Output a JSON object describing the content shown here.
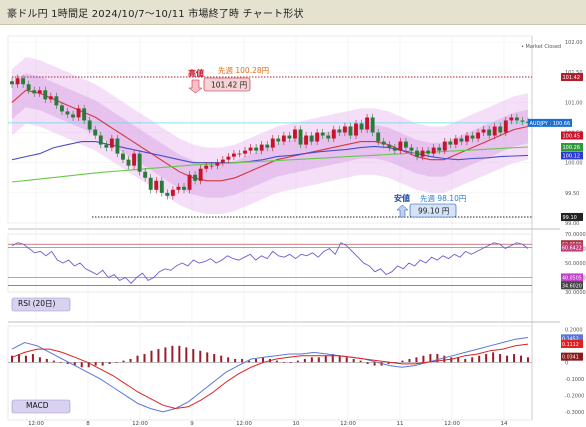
{
  "header": {
    "title": "豪ドル円 1時間足 2024/10/7〜10/11 市場終了時 チャート形状"
  },
  "status": "• Market Closed",
  "colors": {
    "up": "#c8142a",
    "down": "#2c7a3a",
    "sma_short": "#d4373f",
    "sma_mid": "#4a4ec8",
    "sma_long": "#66c84a",
    "bb_band": "#e7b6ef",
    "rsi": "#6a5fd0",
    "macd": "#5a78d8",
    "signal": "#dd2020",
    "current": "#6ad7e6"
  },
  "annotations": {
    "high_label": "高値",
    "high_price": "101.42 円",
    "prev_week_high": "先週 100.28円",
    "low_label": "安値",
    "low_price": "99.10 円",
    "prev_week_low": "先週 98.10円"
  },
  "chart_data": [
    {
      "type": "candlestick",
      "panel": "price",
      "ylim": [
        99.0,
        102.1
      ],
      "y_ticks": [
        "102.00",
        "101.50",
        "101.00",
        "100.50",
        "100.00",
        "99.50",
        "99.00"
      ],
      "x_ticks": [
        "12:00",
        "8",
        "12:00",
        "9",
        "12:00",
        "10",
        "12:00",
        "11",
        "12:00",
        "14"
      ],
      "price_tags": [
        {
          "label": "101.42",
          "value": 101.42,
          "color": "#b01e2e"
        },
        {
          "label": "AUDJPY : 100.66",
          "value": 100.66,
          "color": "#1a6fd1"
        },
        {
          "label": "100.45",
          "value": 100.45,
          "color": "#c8142a"
        },
        {
          "label": "100.26",
          "value": 100.26,
          "color": "#2c9a3a"
        },
        {
          "label": "100.12",
          "value": 100.12,
          "color": "#2c3ad0"
        },
        {
          "label": "99.10",
          "value": 99.1,
          "color": "#222222"
        }
      ],
      "high_line": 101.42,
      "low_line": 99.1,
      "current": 100.66,
      "candles_close": [
        101.3,
        101.4,
        101.3,
        101.2,
        101.15,
        101.2,
        101.05,
        101.1,
        100.95,
        100.85,
        100.8,
        100.75,
        100.9,
        100.7,
        100.55,
        100.45,
        100.3,
        100.25,
        100.4,
        100.15,
        100.05,
        99.95,
        100.15,
        99.85,
        99.75,
        99.55,
        99.7,
        99.5,
        99.45,
        99.55,
        99.6,
        99.55,
        99.8,
        99.7,
        99.9,
        99.95,
        99.95,
        100.0,
        100.05,
        100.1,
        100.15,
        100.15,
        100.2,
        100.25,
        100.2,
        100.3,
        100.25,
        100.4,
        100.35,
        100.45,
        100.4,
        100.55,
        100.3,
        100.45,
        100.35,
        100.5,
        100.45,
        100.4,
        100.55,
        100.5,
        100.6,
        100.45,
        100.65,
        100.55,
        100.75,
        100.5,
        100.35,
        100.3,
        100.25,
        100.2,
        100.35,
        100.25,
        100.2,
        100.1,
        100.2,
        100.15,
        100.25,
        100.2,
        100.35,
        100.3,
        100.4,
        100.35,
        100.45,
        100.4,
        100.5,
        100.55,
        100.45,
        100.6,
        100.5,
        100.7,
        100.75,
        100.7,
        100.68,
        100.66
      ],
      "series": [
        {
          "name": "",
          "values": [
            101.0,
            101.2,
            101.15,
            101.05,
            100.95,
            100.85,
            100.75,
            100.6,
            100.45,
            100.3,
            100.15,
            100.0,
            99.85,
            99.75,
            99.7,
            99.7,
            99.75,
            99.85,
            99.95,
            100.05,
            100.1,
            100.15,
            100.2,
            100.25,
            100.3,
            100.35,
            100.35,
            100.3,
            100.2,
            100.1,
            100.05,
            100.05,
            100.15,
            100.25,
            100.35,
            100.45,
            100.55,
            100.6
          ]
        },
        {
          "name": "",
          "values": [
            100.05,
            100.1,
            100.15,
            100.25,
            100.3,
            100.35,
            100.35,
            100.3,
            100.25,
            100.2,
            100.15,
            100.1,
            100.05,
            100.0,
            100.0,
            100.0,
            100.0,
            100.02,
            100.05,
            100.1,
            100.12,
            100.15,
            100.18,
            100.2,
            100.22,
            100.25,
            100.27,
            100.25,
            100.2,
            100.15,
            100.1,
            100.07,
            100.05,
            100.07,
            100.08,
            100.1,
            100.11,
            100.12
          ]
        },
        {
          "name": "",
          "values": [
            99.68,
            99.72,
            99.76,
            99.8,
            99.84,
            99.87,
            99.9,
            99.93,
            99.96,
            99.98,
            100.0,
            100.02,
            100.04,
            100.06,
            100.08,
            100.1,
            100.12,
            100.14,
            100.16,
            100.18,
            100.2,
            100.22,
            100.24,
            100.26
          ]
        }
      ]
    },
    {
      "type": "line",
      "panel": "rsi",
      "label": "RSI (20日)",
      "ylim": [
        30,
        70
      ],
      "y_ticks": [
        "70.0000",
        "60.0000",
        "50.0000",
        "40.0000",
        "30.0000"
      ],
      "levels": [
        {
          "label": "62.9580",
          "value": 62.958,
          "color": "#a8323e"
        },
        {
          "label": "60.6422",
          "value": 60.6422,
          "color": "#c0407a"
        },
        {
          "label": "40.0505",
          "value": 40.0505,
          "color": "#c040c8"
        },
        {
          "label": "34.6020",
          "value": 34.602,
          "color": "#444444"
        }
      ],
      "series": [
        {
          "name": "",
          "values": [
            62,
            64,
            63,
            60,
            57,
            58,
            55,
            58,
            52,
            50,
            52,
            48,
            50,
            46,
            44,
            42,
            45,
            40,
            42,
            38,
            40,
            36,
            40,
            43,
            38,
            40,
            44,
            46,
            45,
            48,
            50,
            48,
            52,
            50,
            51,
            53,
            50,
            52,
            55,
            53,
            52,
            54,
            56,
            52,
            55,
            53,
            58,
            55,
            54,
            56,
            53,
            56,
            55,
            57,
            54,
            58,
            60,
            56,
            64,
            62,
            58,
            54,
            50,
            48,
            44,
            46,
            42,
            44,
            48,
            46,
            50,
            48,
            52,
            50,
            54,
            52,
            55,
            53,
            56,
            54,
            58,
            56,
            58,
            60,
            62,
            64,
            63,
            60,
            62,
            64,
            63,
            60
          ]
        }
      ]
    },
    {
      "type": "bar",
      "panel": "macd",
      "label": "MACD",
      "ylim": [
        -0.35,
        0.22
      ],
      "y_ticks": [
        "0.2000",
        "0.1000",
        "0",
        "-0.1000",
        "-0.2000",
        "-0.3000"
      ],
      "levels": [
        {
          "label": "0.1452",
          "value": 0.1452,
          "color": "#5a78d8"
        },
        {
          "label": "0.1112",
          "value": 0.1112,
          "color": "#dd2020"
        },
        {
          "label": "0.0341",
          "value": 0.0341,
          "color": "#8a1a1a"
        }
      ],
      "values": [
        0.04,
        0.05,
        0.04,
        0.05,
        0.03,
        0.02,
        0.01,
        0.0,
        -0.01,
        -0.02,
        -0.03,
        -0.03,
        -0.02,
        -0.02,
        -0.01,
        0.0,
        0.01,
        0.02,
        0.04,
        0.05,
        0.07,
        0.08,
        0.09,
        0.1,
        0.1,
        0.09,
        0.08,
        0.07,
        0.06,
        0.05,
        0.04,
        0.03,
        0.02,
        0.02,
        0.01,
        0.02,
        0.03,
        0.02,
        0.01,
        0.0,
        0.0,
        0.01,
        0.02,
        0.03,
        0.03,
        0.04,
        0.05,
        0.04,
        0.03,
        0.02,
        0.01,
        -0.01,
        -0.02,
        -0.02,
        -0.01,
        0.0,
        0.01,
        0.02,
        0.03,
        0.04,
        0.05,
        0.05,
        0.04,
        0.03,
        0.03,
        0.02,
        0.03,
        0.04,
        0.05,
        0.06,
        0.05,
        0.04,
        0.05,
        0.04,
        0.03
      ],
      "series": [
        {
          "name": "",
          "values": [
            0.08,
            0.12,
            0.1,
            0.06,
            0.02,
            -0.02,
            -0.06,
            -0.1,
            -0.15,
            -0.2,
            -0.25,
            -0.28,
            -0.3,
            -0.28,
            -0.24,
            -0.18,
            -0.12,
            -0.06,
            -0.02,
            0.02,
            0.03,
            0.04,
            0.05,
            0.05,
            0.06,
            0.05,
            0.04,
            0.03,
            0.02,
            0.0,
            -0.02,
            -0.03,
            -0.02,
            0.0,
            0.02,
            0.04,
            0.06,
            0.08,
            0.1,
            0.12,
            0.14,
            0.15
          ]
        },
        {
          "name": "",
          "values": [
            0.03,
            0.06,
            0.08,
            0.08,
            0.06,
            0.03,
            0.0,
            -0.04,
            -0.08,
            -0.13,
            -0.18,
            -0.22,
            -0.26,
            -0.28,
            -0.27,
            -0.23,
            -0.18,
            -0.12,
            -0.07,
            -0.03,
            0.0,
            0.02,
            0.03,
            0.04,
            0.04,
            0.04,
            0.04,
            0.03,
            0.02,
            0.01,
            0.0,
            -0.01,
            -0.01,
            0.0,
            0.01,
            0.02,
            0.04,
            0.05,
            0.07,
            0.08,
            0.1,
            0.11
          ]
        }
      ]
    }
  ],
  "panel_labels": {
    "rsi": "RSI (20日)",
    "macd": "MACD"
  }
}
